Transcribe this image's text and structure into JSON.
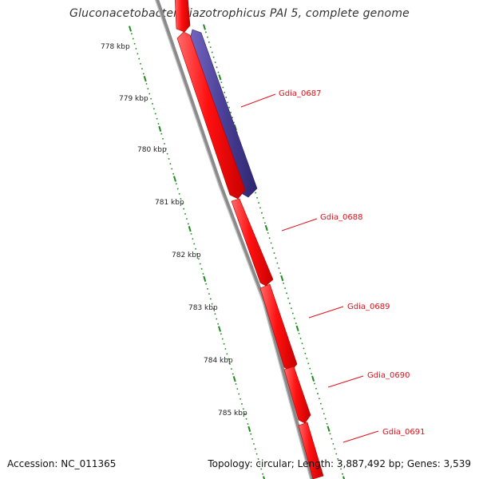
{
  "title": "Gluconacetobacter diazotrophicus PAI 5, complete genome",
  "accession_text": "Accession: NC_011365",
  "summary_text": "Topology: circular; Length: 3,887,492 bp; Genes: 3,539",
  "colors": {
    "forward_gene": "#ff1010",
    "reverse_gene": "#4a3f96",
    "backbone": "#808080",
    "tick": "#1f8a1f",
    "label": "#e0101a"
  },
  "scale": {
    "unit": "kbp",
    "ticks": [
      {
        "label": "778 kbp"
      },
      {
        "label": "779 kbp"
      },
      {
        "label": "780 kbp"
      },
      {
        "label": "781 kbp"
      },
      {
        "label": "782 kbp"
      },
      {
        "label": "783 kbp"
      },
      {
        "label": "784 kbp"
      },
      {
        "label": "785 kbp"
      }
    ]
  },
  "genes": [
    {
      "name": "Gdia_0687",
      "strand": "reverse"
    },
    {
      "name": "Gdia_0688",
      "strand": "forward"
    },
    {
      "name": "Gdia_0689",
      "strand": "forward"
    },
    {
      "name": "Gdia_0690",
      "strand": "forward"
    },
    {
      "name": "Gdia_0691",
      "strand": "forward"
    }
  ]
}
